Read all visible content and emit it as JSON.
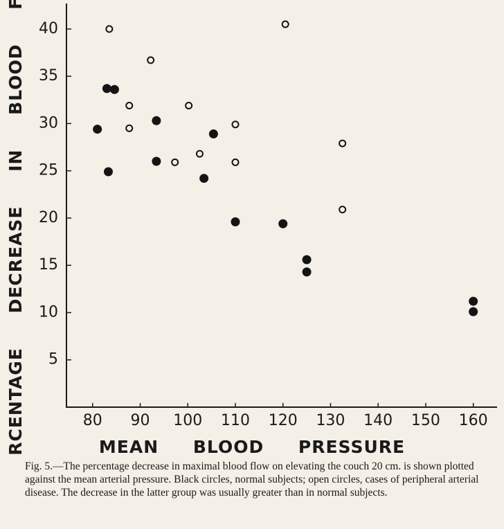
{
  "chart_data": {
    "type": "scatter",
    "x_label": "MEAN BLOOD PRESSURE",
    "y_label": "PERCENTAGE DECREASE IN BLOOD FLOW",
    "caption": "Fig. 5.—The percentage decrease in maximal blood flow on elevating the couch 20 cm. is shown plotted against the mean arterial pressure. Black circles, normal subjects; open circles, cases of peripheral arterial disease. The decrease in the latter group was usually greater than in normal subjects.",
    "xlim": [
      74.5,
      165
    ],
    "ylim": [
      0,
      42.7
    ],
    "xticks": [
      80,
      90,
      100,
      110,
      120,
      130,
      140,
      150,
      160
    ],
    "yticks": [
      5,
      10,
      15,
      20,
      25,
      30,
      35,
      40
    ],
    "series": [
      {
        "color": "#141414",
        "filled": true,
        "x": [
          81,
          83,
          84.6,
          83.3,
          93.4,
          93.4,
          105.4,
          103.4,
          110,
          120,
          125,
          125,
          160,
          160
        ],
        "values": [
          29.4,
          33.7,
          33.6,
          24.9,
          30.3,
          26.0,
          28.9,
          24.2,
          19.6,
          19.4,
          15.6,
          14.3,
          11.2,
          10.1
        ]
      },
      {
        "color": "#141414",
        "filled": false,
        "x": [
          83.5,
          92.2,
          87.7,
          87.7,
          100.2,
          97.3,
          102.5,
          110,
          110,
          120.5,
          132.5,
          132.5
        ],
        "values": [
          40,
          36.7,
          31.9,
          29.5,
          31.9,
          25.9,
          26.8,
          29.9,
          25.9,
          40.5,
          27.9,
          20.9
        ]
      }
    ]
  }
}
